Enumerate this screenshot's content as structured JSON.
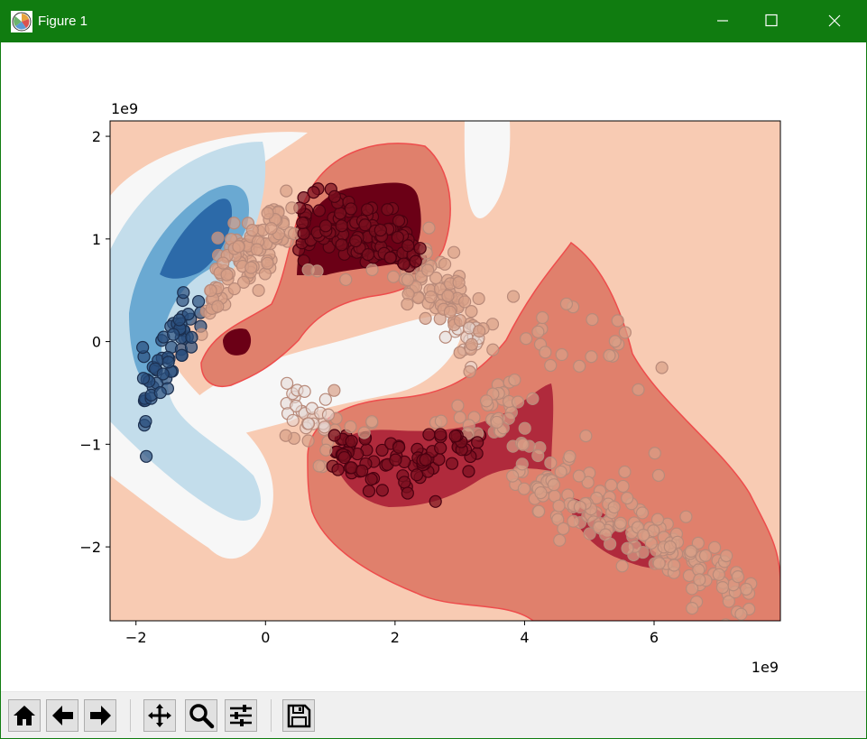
{
  "window": {
    "title": "Figure 1",
    "app_icon": "matplotlib-icon",
    "controls": [
      "minimize-icon",
      "maximize-icon",
      "close-icon"
    ],
    "accent": "#107c10"
  },
  "toolbar": {
    "buttons": [
      {
        "name": "home-button",
        "icon": "home-icon"
      },
      {
        "name": "back-button",
        "icon": "arrow-left-icon"
      },
      {
        "name": "forward-button",
        "icon": "arrow-right-icon"
      },
      {
        "name": "pan-button",
        "icon": "move-icon"
      },
      {
        "name": "zoom-button",
        "icon": "magnifier-icon"
      },
      {
        "name": "configure-subplots-button",
        "icon": "sliders-icon"
      },
      {
        "name": "save-button",
        "icon": "floppy-icon"
      }
    ]
  },
  "chart_data": {
    "type": "contourf+scatter",
    "title": "",
    "xlabel": "",
    "ylabel": "",
    "x_offset_text": "1e9",
    "y_offset_text": "1e9",
    "xlim": [
      -2.4,
      7.95
    ],
    "ylim": [
      -2.72,
      2.15
    ],
    "xticks": [
      -2,
      0,
      2,
      4,
      6
    ],
    "xtick_labels": [
      "−2",
      "0",
      "2",
      "4",
      "6"
    ],
    "yticks": [
      -2,
      -1,
      0,
      1,
      2
    ],
    "ytick_labels": [
      "−2",
      "−1",
      "0",
      "1",
      "2"
    ],
    "grid": false,
    "legend": false,
    "colormap": "RdBu_r",
    "level_colors": [
      "#2c6aa9",
      "#6aa9d2",
      "#c3ddeb",
      "#f7f7f7",
      "#f8cbb3",
      "#e0806c",
      "#b02a3c",
      "#6b0016"
    ],
    "contour_edge": "#ee4c4c",
    "clusters": [
      {
        "label": "blue lobe",
        "x": -1.3,
        "y": 0.5,
        "level": -3
      },
      {
        "label": "upper red peak",
        "x": 1.5,
        "y": 1.15,
        "level": 3
      },
      {
        "label": "small red peak",
        "x": -0.45,
        "y": 0.0,
        "level": 3
      },
      {
        "label": "lower red ridge",
        "x": 2.2,
        "y": -1.2,
        "level": 2
      },
      {
        "label": "lower right red",
        "x": 5.5,
        "y": -1.9,
        "level": 2
      }
    ],
    "marker_colors": {
      "red": "#7a1020",
      "mid": "#d9a088",
      "light": "#e6d8d5",
      "blue": "#2a4e7e"
    }
  }
}
